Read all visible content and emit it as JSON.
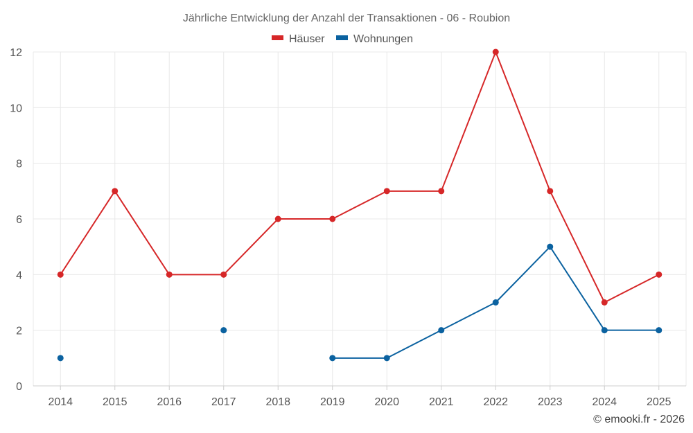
{
  "chart_data": {
    "type": "line",
    "title": "Jährliche Entwicklung der Anzahl der Transaktionen - 06 - Roubion",
    "categories": [
      "2014",
      "2015",
      "2016",
      "2017",
      "2018",
      "2019",
      "2020",
      "2021",
      "2022",
      "2023",
      "2024",
      "2025"
    ],
    "series": [
      {
        "name": "Häuser",
        "color": "#d62728",
        "values": [
          4,
          7,
          4,
          4,
          6,
          6,
          7,
          7,
          12,
          7,
          3,
          4
        ]
      },
      {
        "name": "Wohnungen",
        "color": "#0b62a0",
        "values": [
          1,
          null,
          null,
          2,
          null,
          1,
          1,
          2,
          3,
          5,
          2,
          2
        ]
      }
    ],
    "ylim": [
      0,
      12
    ],
    "yticks": [
      0,
      2,
      4,
      6,
      8,
      10,
      12
    ],
    "xlabel": "",
    "ylabel": "",
    "grid": true,
    "legend_position": "top-center"
  },
  "footer": {
    "credit": "© emooki.fr - 2026"
  }
}
